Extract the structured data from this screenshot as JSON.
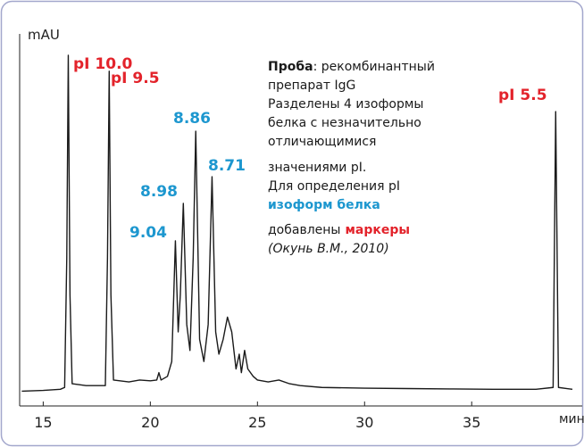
{
  "chart_data": {
    "type": "line",
    "y_label": "mAU",
    "x_label": "мин",
    "xlim": [
      13.9,
      39.7
    ],
    "xticks": [
      15,
      20,
      25,
      30,
      35
    ],
    "ylim": [
      0,
      100
    ],
    "x": [
      14.0,
      15.0,
      15.8,
      16.0,
      16.1,
      16.17,
      16.25,
      16.35,
      17.0,
      17.9,
      18.0,
      18.08,
      18.16,
      18.28,
      19.0,
      19.5,
      20.0,
      20.3,
      20.4,
      20.5,
      20.8,
      21.0,
      21.17,
      21.3,
      21.4,
      21.54,
      21.7,
      21.85,
      22.0,
      22.12,
      22.3,
      22.5,
      22.7,
      22.88,
      23.05,
      23.2,
      23.4,
      23.6,
      23.8,
      24.0,
      24.15,
      24.25,
      24.4,
      24.55,
      24.8,
      25.0,
      25.5,
      26.0,
      26.5,
      27.0,
      28.0,
      30.0,
      32.0,
      34.0,
      36.0,
      38.0,
      38.8,
      38.92,
      39.05,
      39.7
    ],
    "series": [
      {
        "color": "#1a1a1a",
        "values": [
          4.0,
          4.2,
          4.5,
          5,
          40,
          94.7,
          30,
          6,
          5.5,
          5.5,
          40,
          90.4,
          30,
          7,
          6.5,
          7,
          6.8,
          7,
          9,
          7,
          8,
          12,
          44.6,
          20,
          30,
          54.7,
          22,
          15,
          40,
          74.2,
          18,
          12,
          22,
          61.9,
          20,
          14,
          18,
          24,
          20,
          10,
          14,
          9,
          15,
          10,
          8,
          7,
          6.5,
          7,
          6,
          5.5,
          5,
          4.8,
          4.7,
          4.6,
          4.5,
          4.5,
          5,
          79.5,
          5,
          4.5
        ]
      }
    ],
    "annotations": [
      {
        "text": "pI 10.0",
        "color": "#e3232b"
      },
      {
        "text": "pI 9.5",
        "color": "#e3232b"
      },
      {
        "text": "9.04",
        "color": "#1d97cf"
      },
      {
        "text": "8.98",
        "color": "#1d97cf"
      },
      {
        "text": "8.86",
        "color": "#1d97cf"
      },
      {
        "text": "8.71",
        "color": "#1d97cf"
      },
      {
        "text": "pI 5.5",
        "color": "#e3232b"
      }
    ],
    "note": [
      [
        "Проба",
        ": рекомбинантный"
      ],
      [
        "препарат IgG"
      ],
      [
        "Разделены 4 изоформы"
      ],
      [
        "белка с незначительно"
      ],
      [
        "отличающимися"
      ],
      [
        "значениями pI."
      ],
      [
        "Для определения pI"
      ],
      [
        "изоформ белка"
      ],
      [
        "добавлены",
        "маркеры"
      ],
      [
        "(Окунь В.М., 2010)"
      ]
    ]
  }
}
